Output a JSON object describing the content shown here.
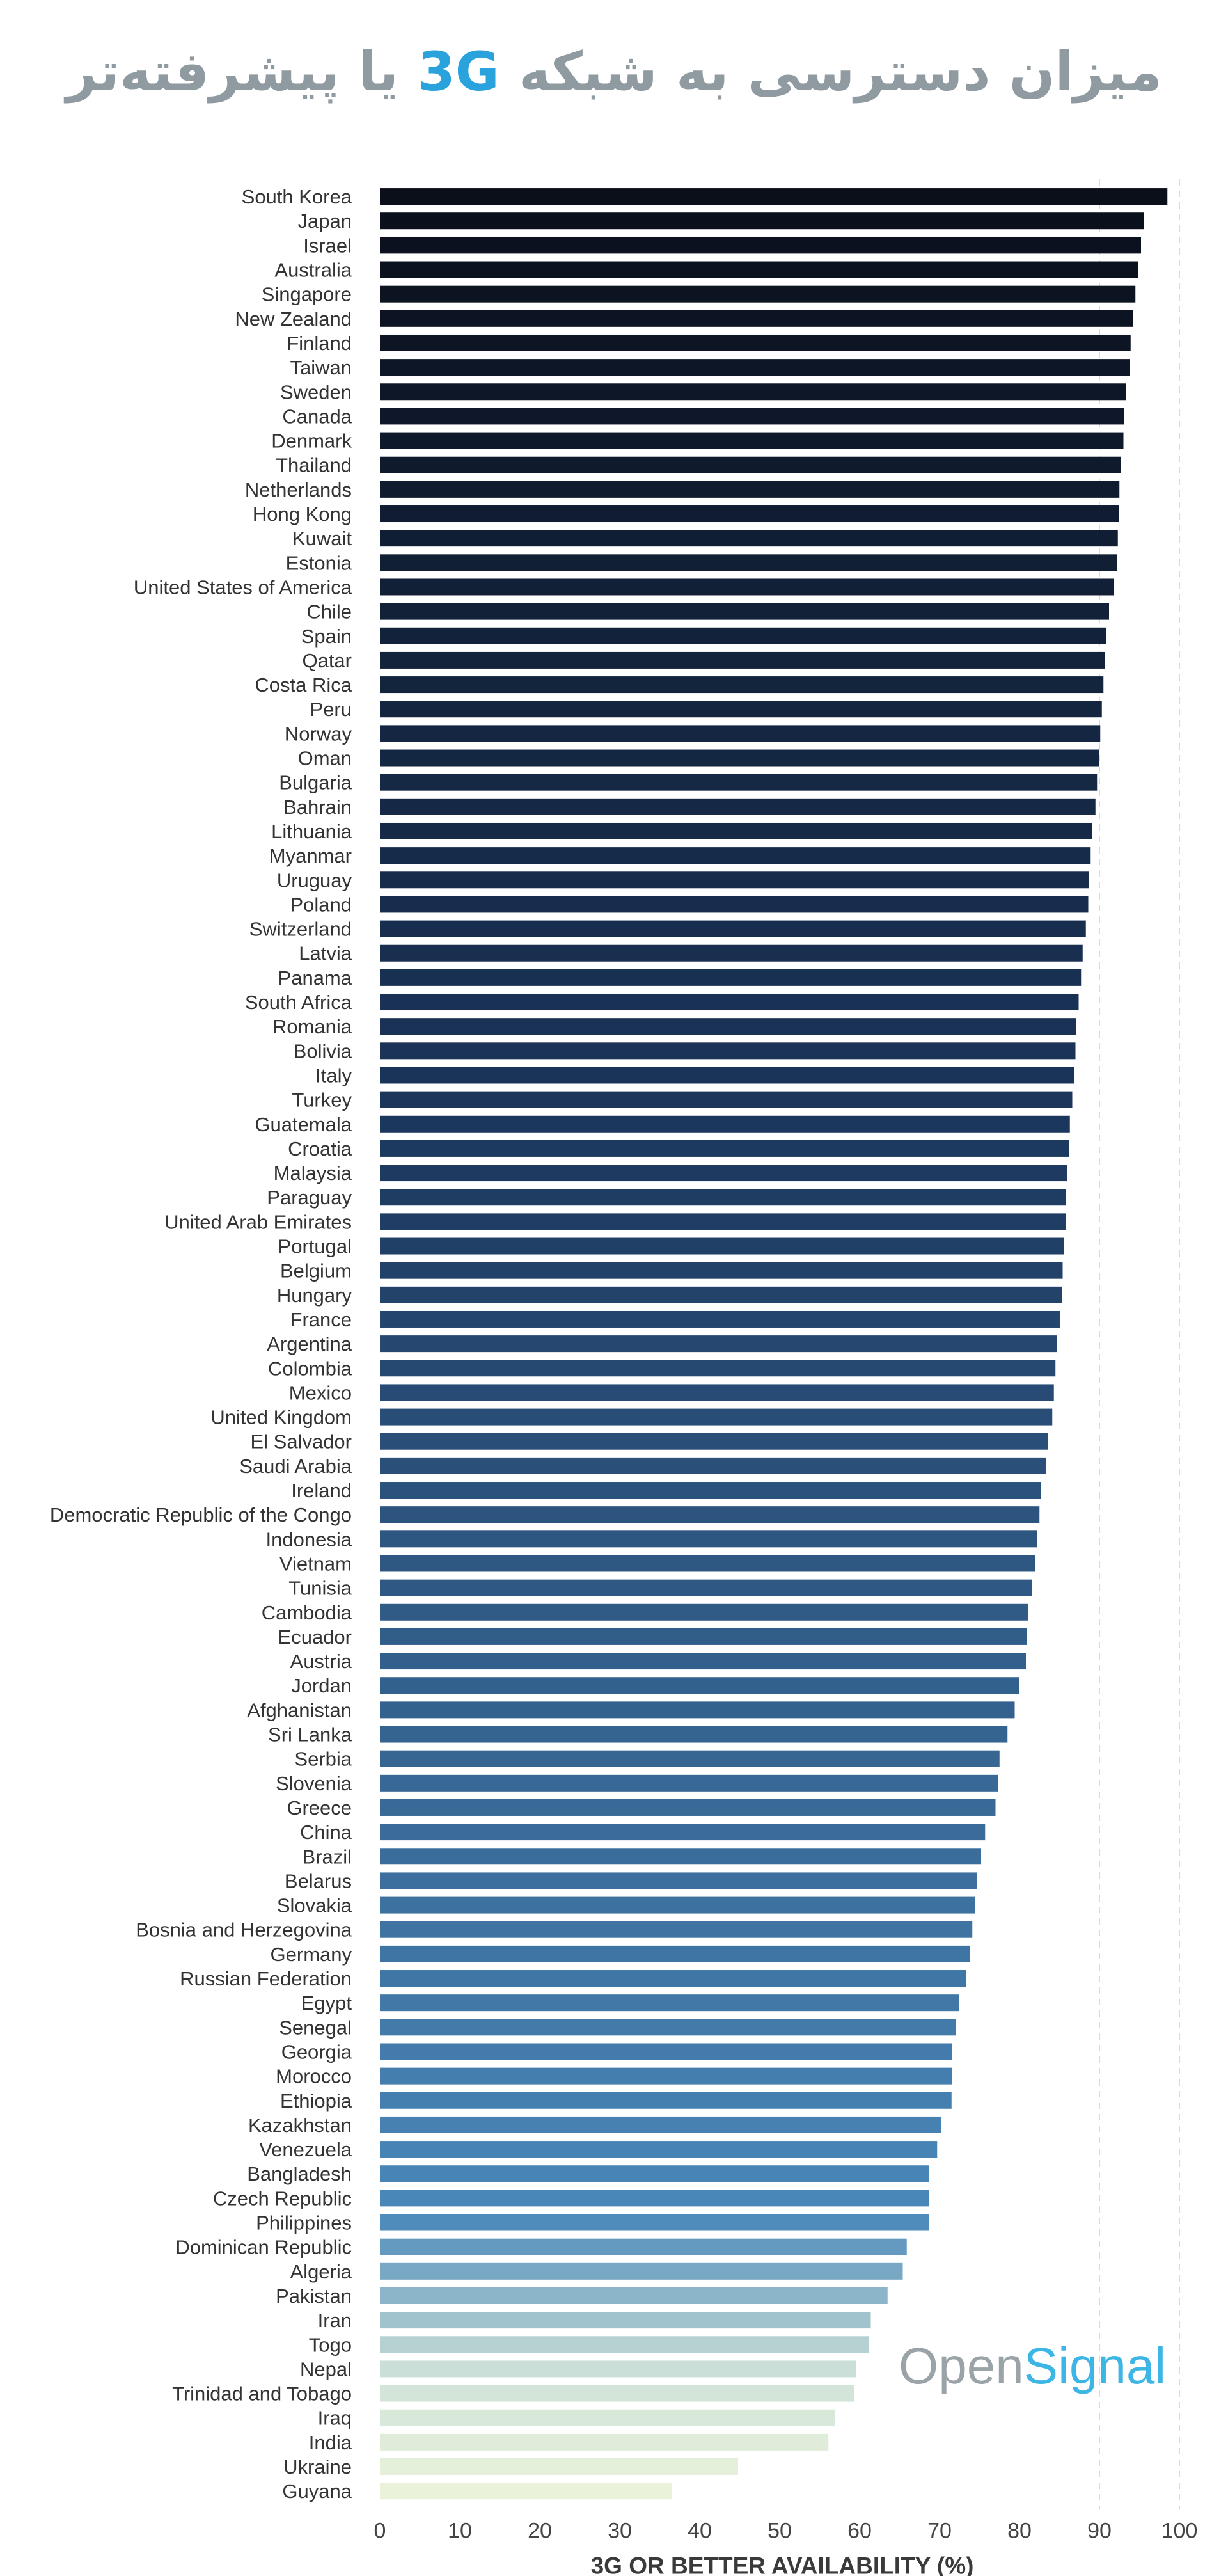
{
  "title": {
    "part1": "میزان دسترسی به شبکه",
    "highlight": "3G",
    "part2": "یا پیشرفته‌تر"
  },
  "logo": {
    "open": "Open",
    "signal": "Signal"
  },
  "chart_data": {
    "type": "bar",
    "orientation": "horizontal",
    "xlabel": "3G OR BETTER AVAILABILITY (%)",
    "xlim": [
      0,
      100
    ],
    "xticks": [
      0,
      10,
      20,
      30,
      40,
      50,
      60,
      70,
      80,
      90,
      100
    ],
    "grid": "vertical dashed at 90 and 100",
    "color_scale": [
      "#0a0f1a",
      "#1b365c",
      "#4a88ba",
      "#cfe3d8",
      "#eaf3da"
    ],
    "categories": [
      "South Korea",
      "Japan",
      "Israel",
      "Australia",
      "Singapore",
      "New Zealand",
      "Finland",
      "Taiwan",
      "Sweden",
      "Canada",
      "Denmark",
      "Thailand",
      "Netherlands",
      "Hong Kong",
      "Kuwait",
      "Estonia",
      "United States of America",
      "Chile",
      "Spain",
      "Qatar",
      "Costa Rica",
      "Peru",
      "Norway",
      "Oman",
      "Bulgaria",
      "Bahrain",
      "Lithuania",
      "Myanmar",
      "Uruguay",
      "Poland",
      "Switzerland",
      "Latvia",
      "Panama",
      "South Africa",
      "Romania",
      "Bolivia",
      "Italy",
      "Turkey",
      "Guatemala",
      "Croatia",
      "Malaysia",
      "Paraguay",
      "United Arab Emirates",
      "Portugal",
      "Belgium",
      "Hungary",
      "France",
      "Argentina",
      "Colombia",
      "Mexico",
      "United Kingdom",
      "El Salvador",
      "Saudi Arabia",
      "Ireland",
      "Democratic Republic of the Congo",
      "Indonesia",
      "Vietnam",
      "Tunisia",
      "Cambodia",
      "Ecuador",
      "Austria",
      "Jordan",
      "Afghanistan",
      "Sri Lanka",
      "Serbia",
      "Slovenia",
      "Greece",
      "China",
      "Brazil",
      "Belarus",
      "Slovakia",
      "Bosnia and Herzegovina",
      "Germany",
      "Russian Federation",
      "Egypt",
      "Senegal",
      "Georgia",
      "Morocco",
      "Ethiopia",
      "Kazakhstan",
      "Venezuela",
      "Bangladesh",
      "Czech Republic",
      "Philippines",
      "Dominican Republic",
      "Algeria",
      "Pakistan",
      "Iran",
      "Togo",
      "Nepal",
      "Trinidad and Tobago",
      "Iraq",
      "India",
      "Ukraine",
      "Guyana"
    ],
    "values": [
      98.5,
      95.6,
      95.2,
      94.8,
      94.5,
      94.2,
      93.9,
      93.8,
      93.3,
      93.1,
      93.0,
      92.7,
      92.5,
      92.4,
      92.3,
      92.2,
      91.8,
      91.2,
      90.8,
      90.7,
      90.5,
      90.3,
      90.1,
      90.0,
      89.7,
      89.5,
      89.1,
      88.9,
      88.7,
      88.6,
      88.3,
      87.9,
      87.7,
      87.4,
      87.1,
      87.0,
      86.8,
      86.6,
      86.3,
      86.2,
      86.0,
      85.8,
      85.8,
      85.6,
      85.4,
      85.3,
      85.1,
      84.7,
      84.5,
      84.3,
      84.1,
      83.6,
      83.3,
      82.7,
      82.5,
      82.2,
      82.0,
      81.6,
      81.1,
      80.9,
      80.8,
      80.0,
      79.4,
      78.5,
      77.5,
      77.3,
      77.0,
      75.7,
      75.2,
      74.7,
      74.4,
      74.1,
      73.8,
      73.3,
      72.4,
      72.0,
      71.6,
      71.6,
      71.5,
      70.2,
      69.7,
      68.7,
      68.7,
      68.7,
      65.9,
      65.4,
      63.5,
      61.4,
      61.2,
      59.6,
      59.3,
      56.9,
      56.1,
      44.8,
      36.5
    ]
  }
}
